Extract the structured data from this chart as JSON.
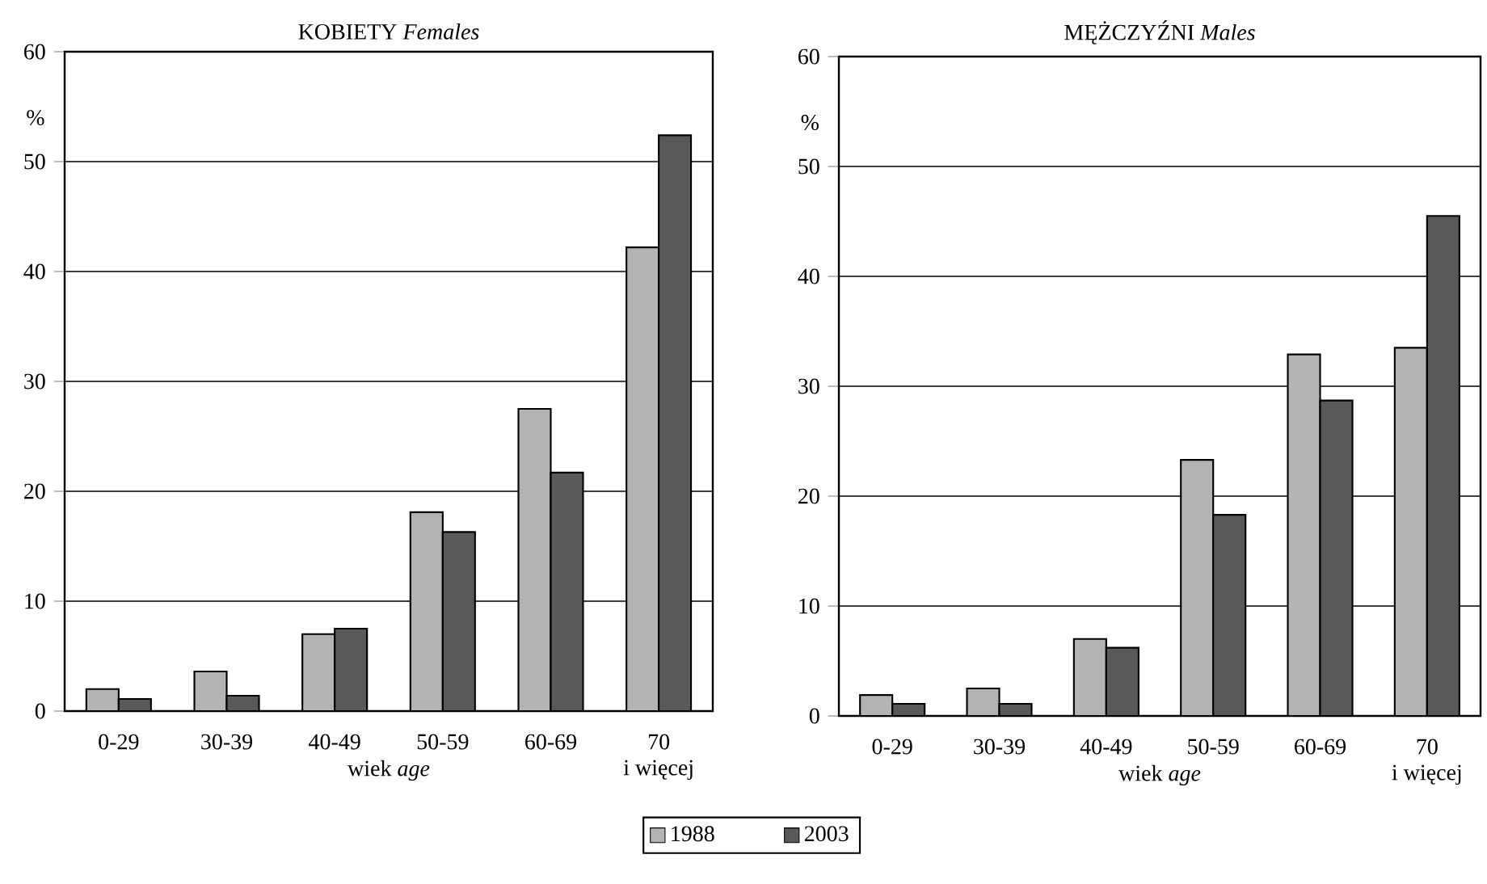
{
  "chart_data": [
    {
      "type": "bar",
      "title": "KOBIETY *Females*",
      "xlabel": "wiek *age*",
      "ylabel": "%",
      "categories": [
        "0-29",
        "30-39",
        "40-49",
        "50-59",
        "60-69",
        "70\ni więcej"
      ],
      "series": [
        {
          "name": "1988",
          "color": "#b3b3b3",
          "values": [
            2.0,
            3.6,
            7.0,
            18.1,
            27.5,
            42.2
          ]
        },
        {
          "name": "2003",
          "color": "#58595b",
          "values": [
            1.1,
            1.4,
            7.5,
            16.3,
            21.7,
            52.4
          ]
        }
      ],
      "ylim": [
        0,
        60
      ],
      "yticks": [
        0,
        10,
        20,
        30,
        40,
        50,
        60
      ],
      "grid": "y",
      "legend": "bottom"
    },
    {
      "type": "bar",
      "title": "MĘŻCZYŹNI *Males*",
      "xlabel": "wiek *age*",
      "ylabel": "%",
      "categories": [
        "0-29",
        "30-39",
        "40-49",
        "50-59",
        "60-69",
        "70\ni więcej"
      ],
      "series": [
        {
          "color": "#b3b3b3",
          "values": [
            1.9,
            2.5,
            7.0,
            23.3,
            32.9,
            33.5
          ]
        },
        {
          "color": "#58595b",
          "values": [
            1.1,
            1.1,
            6.2,
            18.3,
            28.7,
            45.5
          ]
        }
      ],
      "ylim": [
        0,
        60
      ],
      "yticks": [
        0,
        10,
        20,
        30,
        40,
        50,
        60
      ],
      "grid": "y"
    }
  ]
}
